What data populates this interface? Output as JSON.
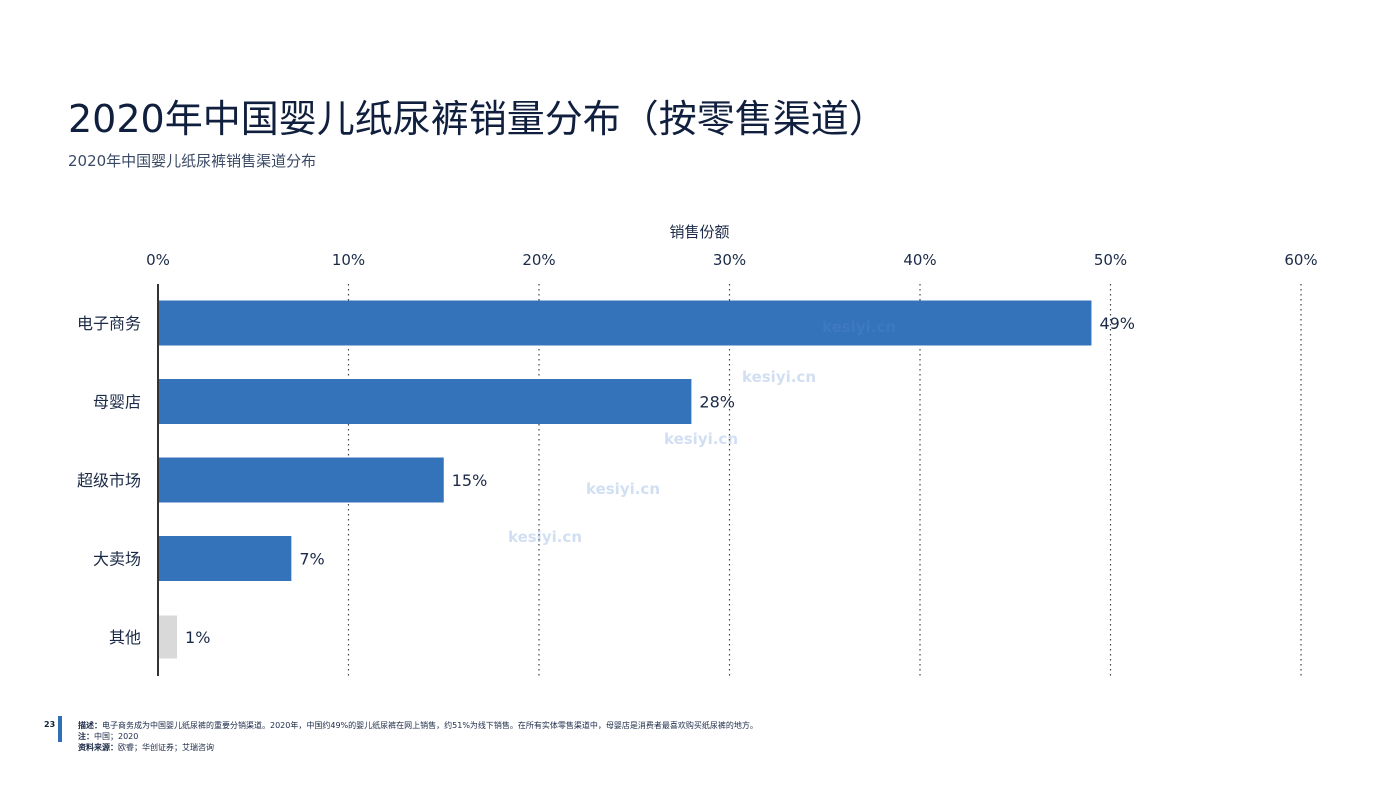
{
  "page": {
    "title": "2020年中国婴儿纸尿裤销量分布（按零售渠道）",
    "subtitle": "2020年中国婴儿纸尿裤销售渠道分布"
  },
  "chart_data": {
    "type": "bar",
    "orientation": "horizontal",
    "xlabel": "销售份额",
    "xlim": [
      0,
      60
    ],
    "x_ticks": [
      "0%",
      "10%",
      "20%",
      "30%",
      "40%",
      "50%",
      "60%"
    ],
    "x_tick_values": [
      0,
      10,
      20,
      30,
      40,
      50,
      60
    ],
    "axis_position": "top",
    "grid": "vertical dotted",
    "categories": [
      "电子商务",
      "母婴店",
      "超级市场",
      "大卖场",
      "其他"
    ],
    "values": [
      49,
      28,
      15,
      7,
      1
    ],
    "value_labels": [
      "49%",
      "28%",
      "15%",
      "7%",
      "1%"
    ],
    "bar_colors": [
      "#3472b9",
      "#3472b9",
      "#3472b9",
      "#3472b9",
      "#d9d9d9"
    ]
  },
  "footer": {
    "page_number": "23",
    "desc_label": "描述：",
    "desc_text": "电子商务成为中国婴儿纸尿裤的重要分销渠道。2020年，中国约49%的婴儿纸尿裤在网上销售，约51%为线下销售。在所有实体零售渠道中，母婴店是消费者最喜欢购买纸尿裤的地方。",
    "note_label": "注：",
    "note_text": "中国；2020",
    "source_label": "资料来源：",
    "source_text": "欧睿；华创证券；艾瑞咨询"
  },
  "watermarks": [
    "kesiyi.cn",
    "kesiyi.cn",
    "kesiyi.cn",
    "kesiyi.cn",
    "kesiyi.cn"
  ]
}
